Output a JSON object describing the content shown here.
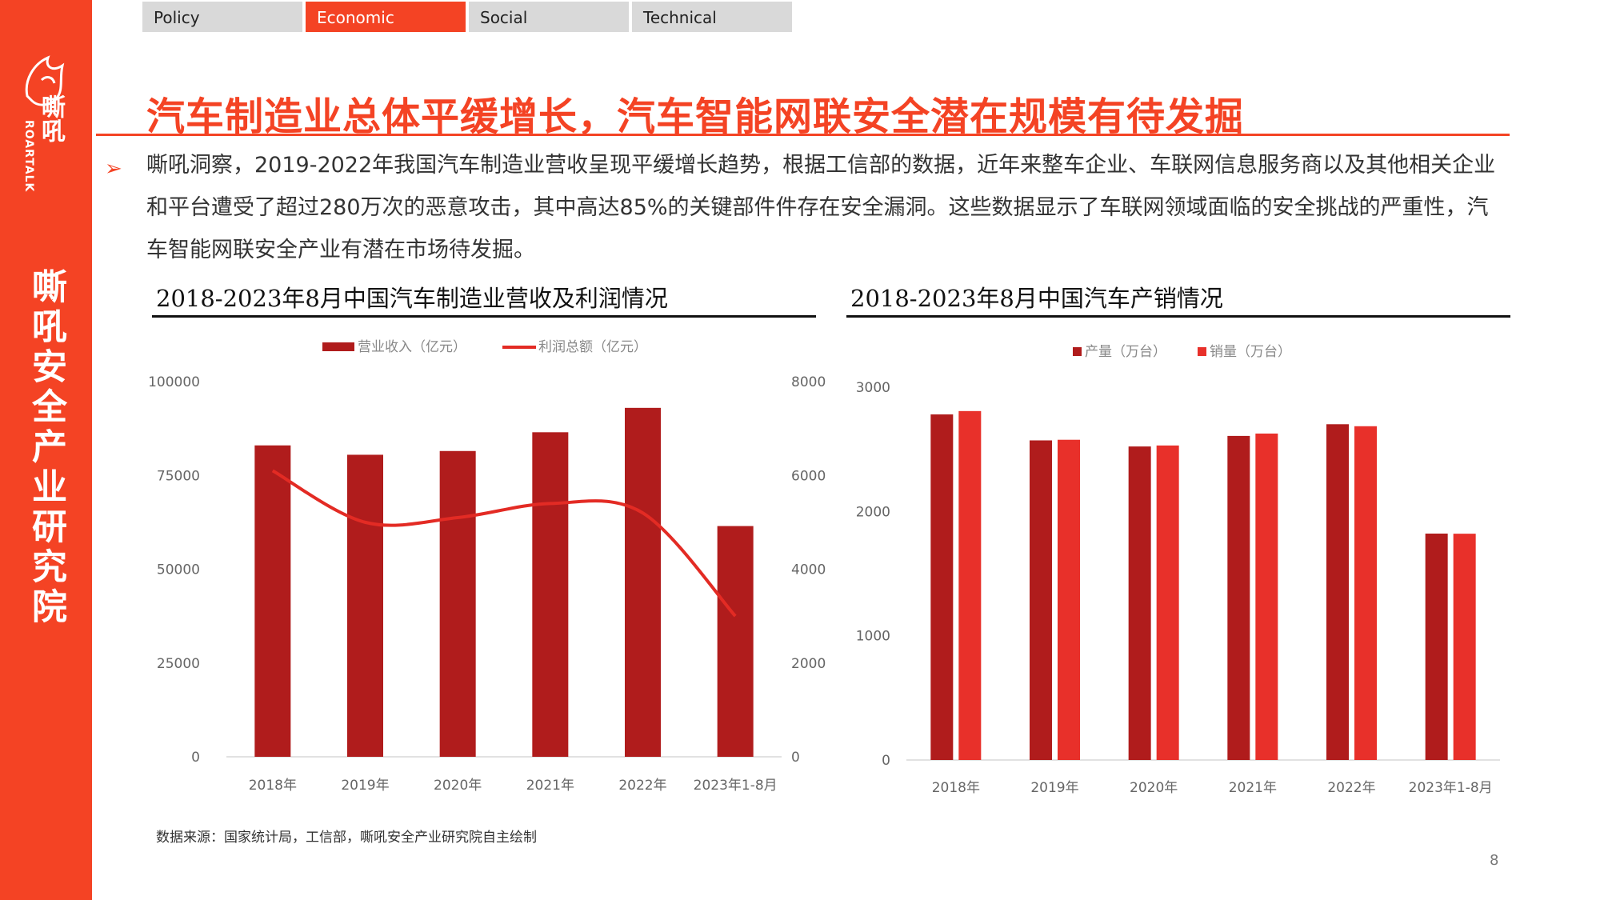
{
  "sidebar": {
    "brand_cn": "嘶吼",
    "brand_en": "ROARTALK",
    "org_name": "嘶吼安全产业研究院"
  },
  "tabs": [
    {
      "label": "Policy",
      "active": false
    },
    {
      "label": "Economic",
      "active": true
    },
    {
      "label": "Social",
      "active": false
    },
    {
      "label": "Technical",
      "active": false
    }
  ],
  "slide": {
    "title": "汽车制造业总体平缓增长，汽车智能网联安全潜在规模有待发掘",
    "paragraph": "嘶吼洞察，2019-2022年我国汽车制造业营收呈现平缓增长趋势，根据工信部的数据，近年来整车企业、车联网信息服务商以及其他相关企业和平台遭受了超过280万次的恶意攻击，其中高达85%的关键部件件存在安全漏洞。这些数据显示了车联网领域面临的安全挑战的严重性，汽车智能网联安全产业有潜在市场待发掘。",
    "source": "数据来源：国家统计局，工信部，嘶吼安全产业研究院自主绘制",
    "page_number": "8"
  },
  "colors": {
    "accent": "#f44324",
    "dark_red": "#b01c1c",
    "bright_red": "#e8302a",
    "line_red": "#e32b24"
  },
  "chart_data": [
    {
      "type": "bar",
      "panel_title": "2018-2023年8月中国汽车制造业营收及利润情况",
      "categories": [
        "2018年",
        "2019年",
        "2020年",
        "2021年",
        "2022年",
        "2023年1-8月"
      ],
      "series": [
        {
          "name": "营业收入（亿元）",
          "type": "bar",
          "axis": "left",
          "values": [
            83000,
            80500,
            81500,
            86500,
            93000,
            61500
          ]
        },
        {
          "name": "利润总额（亿元）",
          "type": "line",
          "axis": "right",
          "values": [
            6100,
            5000,
            5100,
            5400,
            5200,
            3000
          ]
        }
      ],
      "y_left": {
        "min": 0,
        "max": 100000,
        "ticks": [
          0,
          25000,
          50000,
          75000,
          100000
        ]
      },
      "y_right": {
        "min": 0,
        "max": 8000,
        "ticks": [
          0,
          2000,
          4000,
          6000,
          8000
        ]
      },
      "legend_position": "top",
      "grid": false
    },
    {
      "type": "bar",
      "panel_title": "2018-2023年8月中国汽车产销情况",
      "categories": [
        "2018年",
        "2019年",
        "2020年",
        "2021年",
        "2022年",
        "2023年1-8月"
      ],
      "series": [
        {
          "name": "产量（万台）",
          "values": [
            2781,
            2572,
            2523,
            2608,
            2702,
            1822
          ]
        },
        {
          "name": "销量（万台）",
          "values": [
            2808,
            2577,
            2531,
            2627,
            2686,
            1821
          ]
        }
      ],
      "y": {
        "min": 0,
        "max": 3000,
        "ticks": [
          0,
          1000,
          2000,
          3000
        ]
      },
      "legend_position": "top",
      "grid": false
    }
  ]
}
